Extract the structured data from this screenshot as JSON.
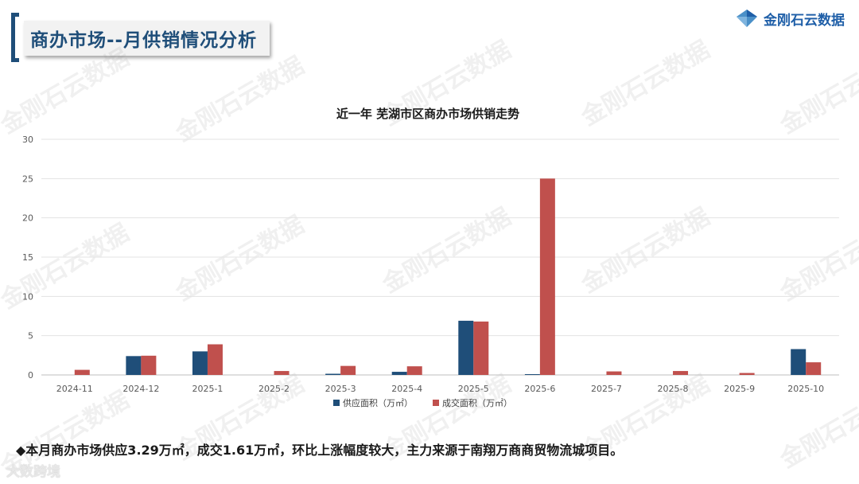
{
  "header": {
    "title": "商办市场--月供销情况分析",
    "logo_text": "金刚石云数据",
    "logo_icon": "diamond-logo-icon"
  },
  "watermark_text": "金刚石云数据",
  "colors": {
    "supply": "#1f4e79",
    "deal": "#c0504d",
    "title_blue": "#1f4e79"
  },
  "chart_data": {
    "type": "bar",
    "title": "近一年  芜湖市区商办市场供销走势",
    "categories": [
      "2024-11",
      "2024-12",
      "2025-1",
      "2025-2",
      "2025-3",
      "2025-4",
      "2025-5",
      "2025-6",
      "2025-7",
      "2025-8",
      "2025-9",
      "2025-10"
    ],
    "series": [
      {
        "name": "供应面积（万㎡）",
        "values": [
          0,
          2.4,
          3.0,
          0,
          0.15,
          0.4,
          6.9,
          0.1,
          0,
          0,
          0,
          3.29
        ]
      },
      {
        "name": "成交面积（万㎡）",
        "values": [
          0.65,
          2.45,
          3.9,
          0.5,
          1.15,
          1.1,
          6.8,
          25.0,
          0.45,
          0.5,
          0.25,
          1.61
        ]
      }
    ],
    "ylim": [
      0,
      30
    ],
    "yticks": [
      "0",
      "5",
      "10",
      "15",
      "20",
      "25",
      "30"
    ],
    "grid": true,
    "legend_position": "bottom"
  },
  "summary": "◆本月商办市场供应3.29万㎡，成交1.61万㎡，环比上涨幅度较大，主力来源于南翔万商商贸物流城项目。",
  "footer_mark": "大数跨境"
}
